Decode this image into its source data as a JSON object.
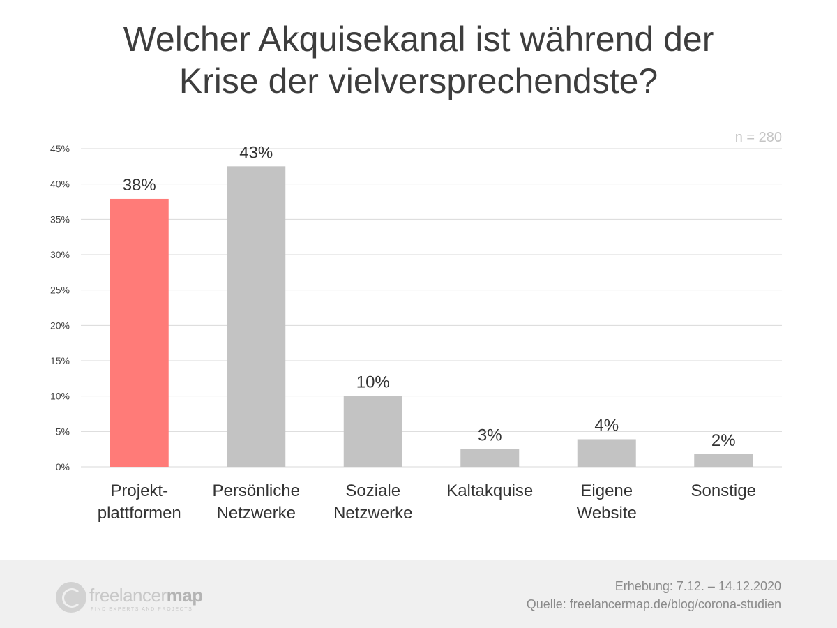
{
  "title": {
    "line1": "Welcher Akquisekanal ist während der",
    "line2": "Krise der vielversprechendste?"
  },
  "sample_size": "n = 280",
  "colors": {
    "highlight": "#ff7b78",
    "bar": "#c3c3c3",
    "grid": "#d9d9d9"
  },
  "chart_data": {
    "type": "bar",
    "title": "Welcher Akquisekanal ist während der Krise der vielversprechendste?",
    "xlabel": "",
    "ylabel": "",
    "ylim": [
      0,
      45
    ],
    "yticks": [
      0,
      5,
      10,
      15,
      20,
      25,
      30,
      35,
      40,
      45
    ],
    "ytick_labels": [
      "0%",
      "5%",
      "10%",
      "15%",
      "20%",
      "25%",
      "30%",
      "35%",
      "40%",
      "45%"
    ],
    "grid": true,
    "categories": [
      [
        "Projekt-",
        "plattformen"
      ],
      [
        "Persönliche",
        "Netzwerke"
      ],
      [
        "Soziale",
        "Netzwerke"
      ],
      [
        "Kaltakquise"
      ],
      [
        "Eigene",
        "Website"
      ],
      [
        "Sonstige"
      ]
    ],
    "values": [
      37.9,
      42.5,
      10.0,
      2.5,
      3.9,
      1.8
    ],
    "data_labels": [
      "38%",
      "43%",
      "10%",
      "3%",
      "4%",
      "2%"
    ],
    "highlight_index": 0
  },
  "footer": {
    "logo_light": "freelancer",
    "logo_bold": "map",
    "logo_tagline": "FIND EXPERTS AND PROJECTS",
    "survey_period": "Erhebung: 7.12. – 14.12.2020",
    "source": "Quelle: freelancermap.de/blog/corona-studien"
  }
}
